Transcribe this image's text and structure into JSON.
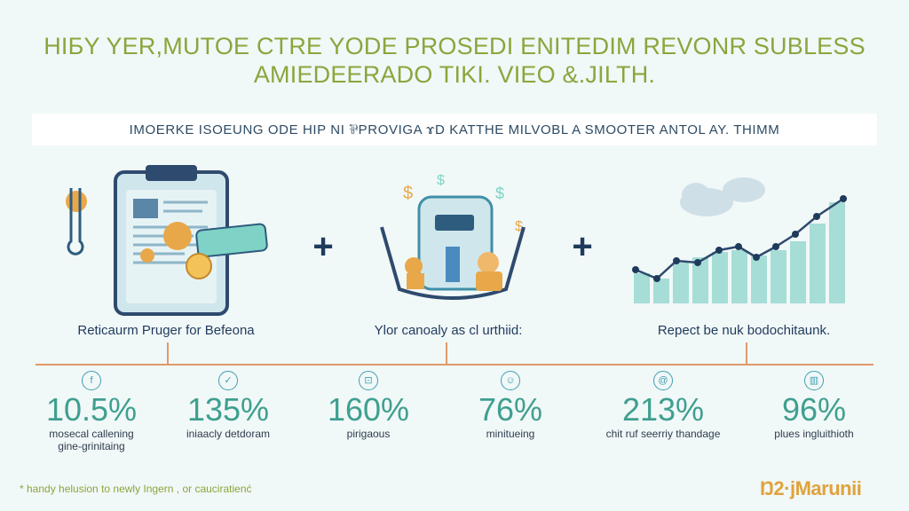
{
  "header": {
    "title_line1": "HIБY YER,MUTOE CTRE YODE PROSEDI ENITEDIM REVONR SUBLESS",
    "title_line2": "AMIEDEERADO TIKI. VIEO &.JILTH."
  },
  "banner": {
    "text": "IMOERKE ISOEUNG ODE HIP NI ⅌PROVIGA ɤD KATTHE MILVOBL A SMOOTER ANTOL AY. THIMM"
  },
  "panels": [
    {
      "caption": "Reticaurm Pruger for Befeona",
      "icon": "clipboard-illustration"
    },
    {
      "caption": "Ylor canoaly as cl urthiid:",
      "icon": "money-bag-illustration"
    },
    {
      "caption": "Repect be nuk bodochitaunk.",
      "icon": "growth-chart-illustration"
    }
  ],
  "operators": [
    "+",
    "+"
  ],
  "stats": [
    {
      "icon_glyph": "f",
      "icon": "facebook-icon",
      "value": "10.5%",
      "label_line1": "mosecal callening",
      "label_line2": "gine-grinitaing"
    },
    {
      "icon_glyph": "✓",
      "icon": "check-icon",
      "value": "135%",
      "label_line1": "iniaacly detdoram",
      "label_line2": ""
    },
    {
      "icon_glyph": "⊡",
      "icon": "wallet-icon",
      "value": "160%",
      "label_line1": "pirigaous",
      "label_line2": ""
    },
    {
      "icon_glyph": "☺",
      "icon": "person-icon",
      "value": "76%",
      "label_line1": "minitueing",
      "label_line2": ""
    },
    {
      "icon_glyph": "@",
      "icon": "at-icon",
      "value": "213%",
      "label_line1": "chit ruf seerriy thandage",
      "label_line2": ""
    },
    {
      "icon_glyph": "▥",
      "icon": "bin-icon",
      "value": "96%",
      "label_line1": "plues ingluithioth",
      "label_line2": ""
    }
  ],
  "footnote": "* handy helusion to newly Ingern , or cauciratienć",
  "logo": "Ŋ2·jMarunii",
  "colors": {
    "title": "#8aa63c",
    "accent": "#3f9f8f",
    "navy": "#1f3b5c",
    "timeline": "#e09a6a"
  }
}
